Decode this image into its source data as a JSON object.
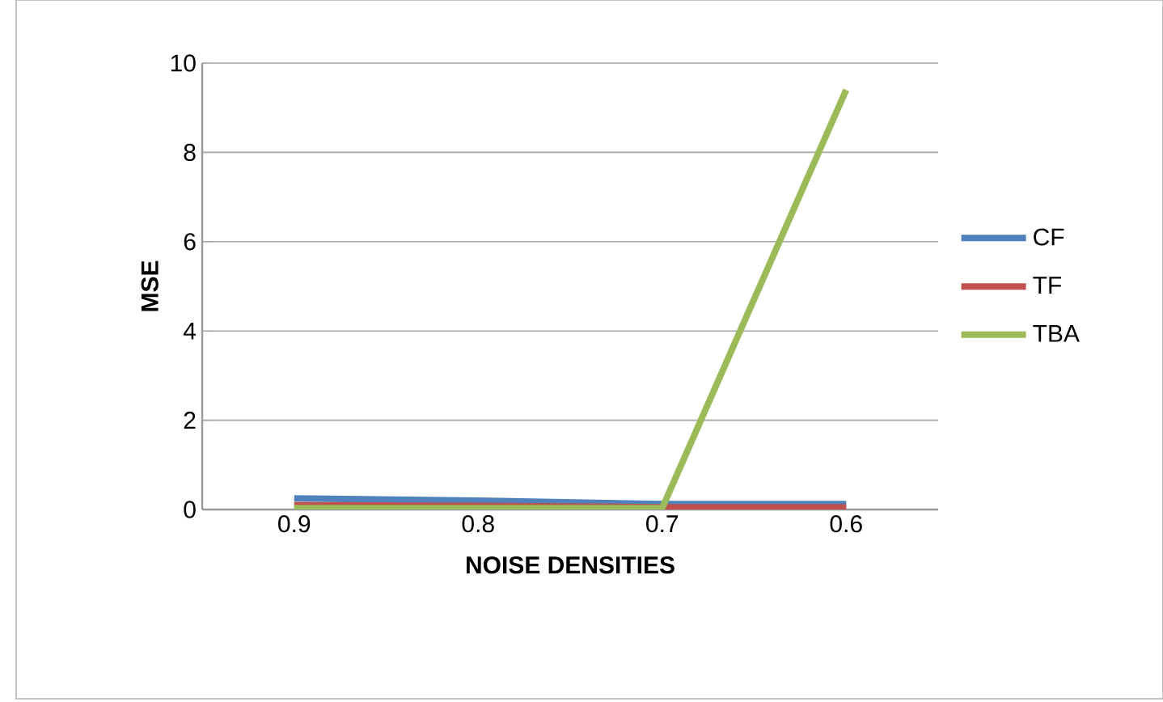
{
  "chart_data": {
    "type": "line",
    "xlabel": "NOISE DENSITIES",
    "ylabel": "MSE",
    "categories": [
      "0.9",
      "0.8",
      "0.7",
      "0.6"
    ],
    "series": [
      {
        "name": "CF",
        "color": "#4f81bd",
        "values": [
          0.25,
          0.2,
          0.12,
          0.12
        ]
      },
      {
        "name": "TF",
        "color": "#c0504d",
        "values": [
          0.1,
          0.08,
          0.05,
          0.05
        ]
      },
      {
        "name": "TBA",
        "color": "#9bbb59",
        "values": [
          0.03,
          0.03,
          0.03,
          9.4
        ]
      }
    ],
    "ylim": [
      0,
      10
    ],
    "yticks": [
      0,
      2,
      4,
      6,
      8,
      10
    ],
    "grid": "y",
    "legend": "right",
    "marker": "none",
    "line_style": "solid"
  }
}
